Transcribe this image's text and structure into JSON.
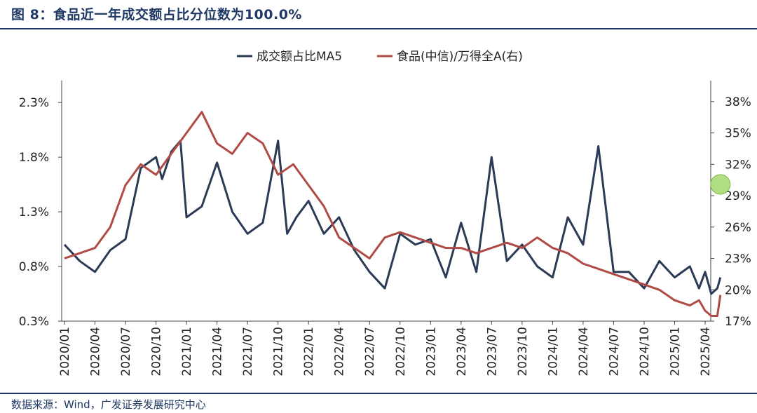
{
  "header": {
    "title": "图 8：食品近一年成交额占比分位数为100.0%"
  },
  "footer": {
    "source": "数据来源：Wind，广发证券发展研究中心"
  },
  "colors": {
    "series1": "#2b3a55",
    "series2": "#b04a45",
    "highlight": "#8fd14f",
    "rule": "#1f3864"
  },
  "chart_data": {
    "type": "line",
    "title": "",
    "legend_position": "top-center",
    "x_tick_labels": [
      "2020/01",
      "2020/04",
      "2020/07",
      "2020/10",
      "2021/01",
      "2021/04",
      "2021/07",
      "2021/10",
      "2022/01",
      "2022/04",
      "2022/07",
      "2022/10",
      "2023/01",
      "2023/04",
      "2023/07",
      "2023/10",
      "2024/01",
      "2024/04",
      "2024/07",
      "2024/10",
      "2025/01",
      "2025/04"
    ],
    "y_left": {
      "ticks": [
        "2.3%",
        "1.8%",
        "1.3%",
        "0.8%",
        "0.3%"
      ],
      "tick_values": [
        2.3,
        1.8,
        1.3,
        0.8,
        0.3
      ],
      "range": [
        0.3,
        2.5
      ],
      "unit": "%"
    },
    "y_right": {
      "ticks": [
        "38%",
        "35%",
        "32%",
        "29%",
        "26%",
        "23%",
        "20%",
        "17%"
      ],
      "tick_values": [
        38,
        35,
        32,
        29,
        26,
        23,
        20,
        17
      ],
      "range": [
        17,
        40
      ],
      "unit": "%"
    },
    "series": [
      {
        "name": "成交额占比MA5",
        "axis": "left",
        "x": [
          0,
          0.5,
          1,
          1.5,
          2,
          2.5,
          3,
          3.2,
          3.5,
          3.8,
          4,
          4.5,
          5,
          5.5,
          6,
          6.5,
          7,
          7.3,
          7.6,
          8,
          8.5,
          9,
          9.5,
          10,
          10.5,
          11,
          11.5,
          12,
          12.5,
          13,
          13.5,
          14,
          14.5,
          15,
          15.5,
          16,
          16.5,
          17,
          17.5,
          18,
          18.5,
          19,
          19.5,
          20,
          20.5,
          20.8,
          21,
          21.2,
          21.4,
          21.5
        ],
        "values": [
          1.0,
          0.85,
          0.75,
          0.95,
          1.05,
          1.7,
          1.8,
          1.6,
          1.85,
          1.95,
          1.25,
          1.35,
          1.75,
          1.3,
          1.1,
          1.2,
          1.95,
          1.1,
          1.25,
          1.4,
          1.1,
          1.25,
          0.95,
          0.75,
          0.6,
          1.1,
          1.0,
          1.05,
          0.7,
          1.2,
          0.75,
          1.8,
          0.85,
          1.0,
          0.8,
          0.7,
          1.25,
          1.0,
          1.9,
          0.75,
          0.75,
          0.6,
          0.85,
          0.7,
          0.8,
          0.6,
          0.75,
          0.55,
          0.6,
          0.7
        ]
      },
      {
        "name": "食品(中信)/万得全A(右)",
        "axis": "right",
        "x": [
          0,
          0.5,
          1,
          1.5,
          2,
          2.5,
          3,
          3.5,
          4,
          4.5,
          5,
          5.5,
          6,
          6.5,
          7,
          7.5,
          8,
          8.5,
          9,
          9.5,
          10,
          10.5,
          11,
          11.5,
          12,
          12.5,
          13,
          13.5,
          14,
          14.5,
          15,
          15.5,
          16,
          16.5,
          17,
          17.5,
          18,
          18.5,
          19,
          19.5,
          20,
          20.5,
          20.8,
          21,
          21.2,
          21.4,
          21.5
        ],
        "values": [
          23,
          23.5,
          24,
          26,
          30,
          32,
          31,
          33,
          35,
          37,
          34,
          33,
          35,
          34,
          31,
          32,
          30,
          28,
          25,
          24,
          23,
          25,
          25.5,
          25,
          24.5,
          24,
          24,
          23.5,
          24,
          24.5,
          24,
          25,
          24,
          23.5,
          22.5,
          22,
          21.5,
          21,
          20.5,
          20,
          19,
          18.5,
          19,
          18,
          17.5,
          17.5,
          19.5
        ]
      }
    ]
  }
}
